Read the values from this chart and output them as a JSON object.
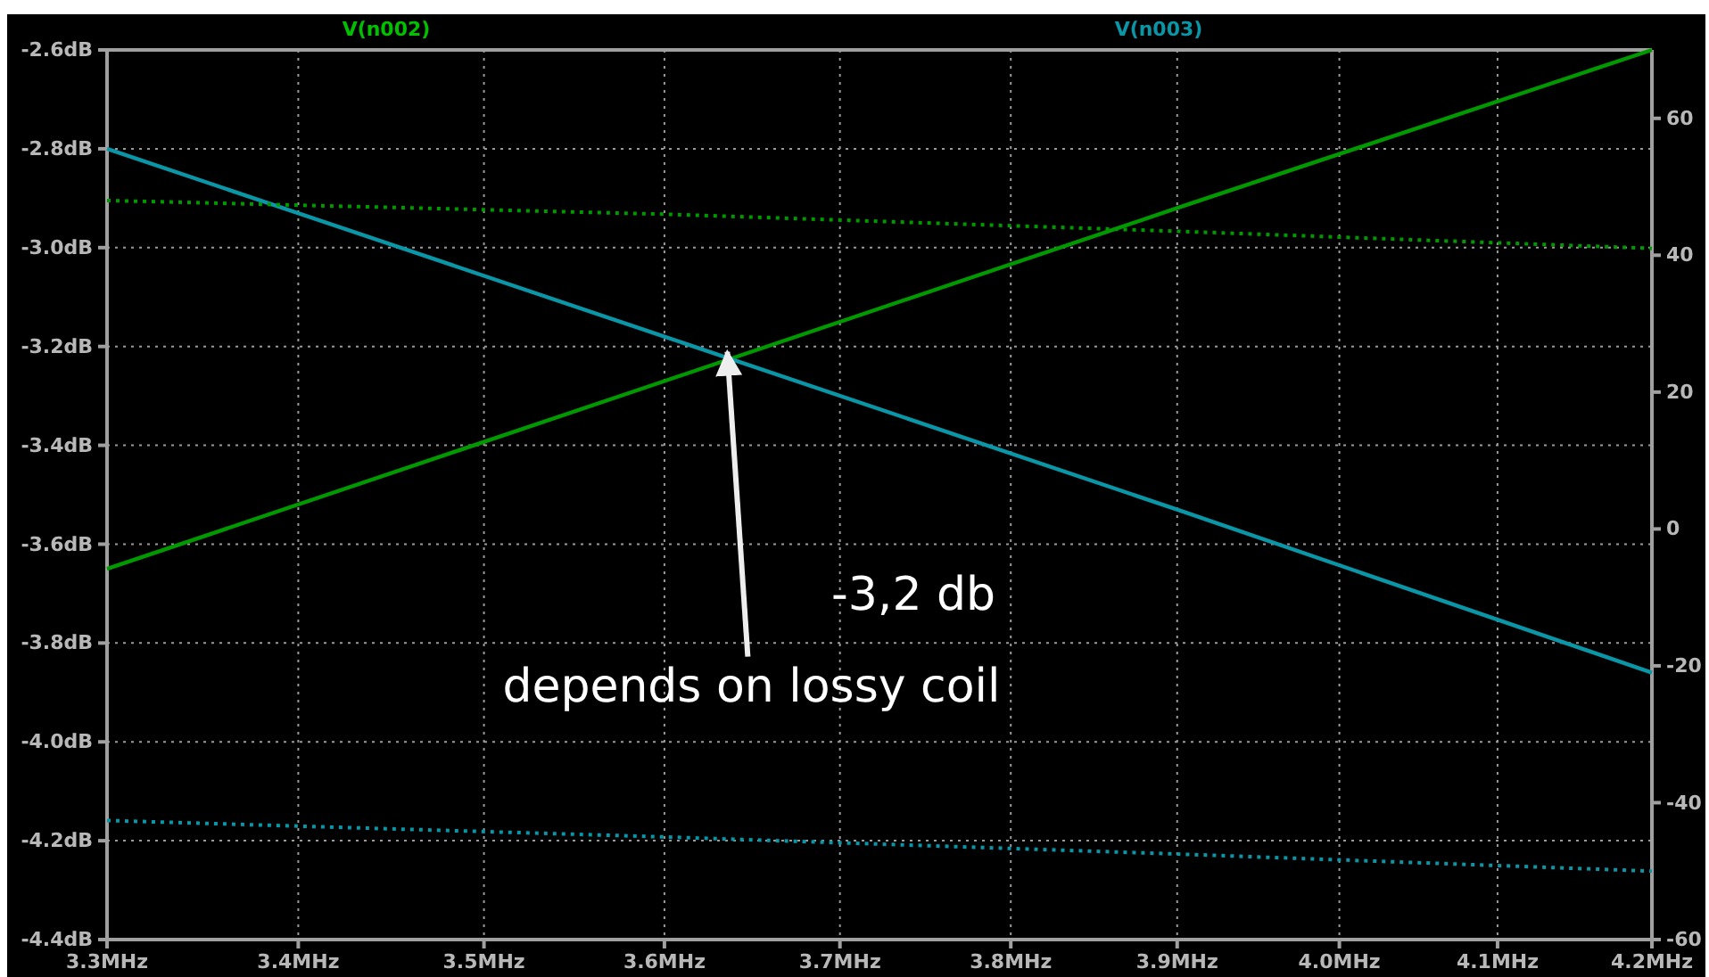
{
  "chart_data": {
    "type": "line",
    "log": "x",
    "x": [
      3.3,
      3.6,
      3.9,
      4.2
    ],
    "series": [
      {
        "name": "V(n002)",
        "color": "#009900",
        "values": [
          -3.65,
          -3.27,
          -2.92,
          -2.6
        ]
      },
      {
        "name": "V(n003)",
        "color": "#0a96a6",
        "values": [
          -2.8,
          -3.18,
          -3.53,
          -3.86
        ]
      },
      {
        "color": "#009900",
        "axis": "y2",
        "line_style": "dotted",
        "values": [
          48,
          46,
          43.5,
          41
        ]
      },
      {
        "color": "#0a96a6",
        "axis": "y2",
        "line_style": "dotted",
        "values": [
          -42.6,
          -45,
          -47.5,
          -50
        ]
      }
    ],
    "xlim": [
      3.3,
      4.2
    ],
    "xticks": [
      {
        "value": 3.3,
        "label": "3.3MHz"
      },
      {
        "value": 3.4,
        "label": "3.4MHz"
      },
      {
        "value": 3.5,
        "label": "3.5MHz"
      },
      {
        "value": 3.6,
        "label": "3.6MHz"
      },
      {
        "value": 3.7,
        "label": "3.7MHz"
      },
      {
        "value": 3.8,
        "label": "3.8MHz"
      },
      {
        "value": 3.9,
        "label": "3.9MHz"
      },
      {
        "value": 4.0,
        "label": "4.0MHz"
      },
      {
        "value": 4.1,
        "label": "4.1MHz"
      },
      {
        "value": 4.2,
        "label": "4.2MHz"
      }
    ],
    "ylim": [
      -4.4,
      -2.6
    ],
    "yticks": [
      {
        "value": -2.6,
        "label": "-2.6dB"
      },
      {
        "value": -2.8,
        "label": "-2.8dB"
      },
      {
        "value": -3.0,
        "label": "-3.0dB"
      },
      {
        "value": -3.2,
        "label": "-3.2dB"
      },
      {
        "value": -3.4,
        "label": "-3.4dB"
      },
      {
        "value": -3.6,
        "label": "-3.6dB"
      },
      {
        "value": -3.8,
        "label": "-3.8dB"
      },
      {
        "value": -4.0,
        "label": "-4.0dB"
      },
      {
        "value": -4.2,
        "label": "-4.2dB"
      },
      {
        "value": -4.4,
        "label": "-4.4dB"
      }
    ],
    "y2lim": [
      -60,
      70
    ],
    "y2ticks": [
      60,
      40,
      20,
      0,
      -20,
      -40,
      -60
    ],
    "grid": true,
    "legend": "top",
    "line_style": "solid",
    "marker": "none",
    "annotations": [
      "-3,2 db",
      {
        "text": "depends on lossy coil",
        "x": 3.635,
        "y": -3.2
      }
    ]
  }
}
